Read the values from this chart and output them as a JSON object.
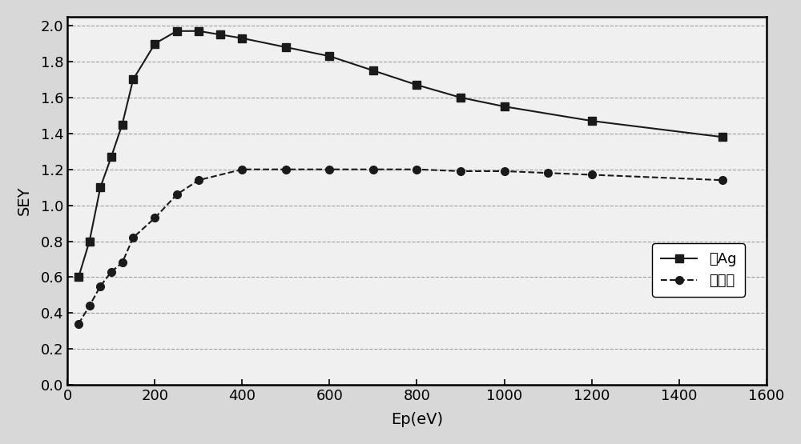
{
  "ag_x": [
    25,
    50,
    75,
    100,
    125,
    150,
    200,
    250,
    300,
    350,
    400,
    500,
    600,
    700,
    800,
    900,
    1000,
    1200,
    1500
  ],
  "ag_y": [
    0.6,
    0.8,
    1.1,
    1.27,
    1.45,
    1.7,
    1.9,
    1.97,
    1.97,
    1.95,
    1.93,
    1.88,
    1.83,
    1.75,
    1.67,
    1.6,
    1.55,
    1.47,
    1.38
  ],
  "etch_x": [
    25,
    50,
    75,
    100,
    125,
    150,
    200,
    250,
    300,
    400,
    500,
    600,
    700,
    800,
    900,
    1000,
    1100,
    1200,
    1500
  ],
  "etch_y": [
    0.34,
    0.44,
    0.55,
    0.63,
    0.68,
    0.82,
    0.93,
    1.06,
    1.14,
    1.2,
    1.2,
    1.2,
    1.2,
    1.2,
    1.19,
    1.19,
    1.18,
    1.17,
    1.14
  ],
  "ag_label": "镶Ag",
  "etch_label": "微刻蚀",
  "xlabel": "Ep(eV)",
  "ylabel": "SEY",
  "xlim": [
    0,
    1600
  ],
  "ylim": [
    0.0,
    2.0
  ],
  "xticks": [
    0,
    200,
    400,
    600,
    800,
    1000,
    1200,
    1400,
    1600
  ],
  "yticks": [
    0.0,
    0.2,
    0.4,
    0.6,
    0.8,
    1.0,
    1.2,
    1.4,
    1.6,
    1.8,
    2.0
  ],
  "fig_bg_color": "#d8d8d8",
  "plot_bg_color": "#f0f0f0",
  "line_color": "#1a1a1a",
  "grid_color": "#888888"
}
